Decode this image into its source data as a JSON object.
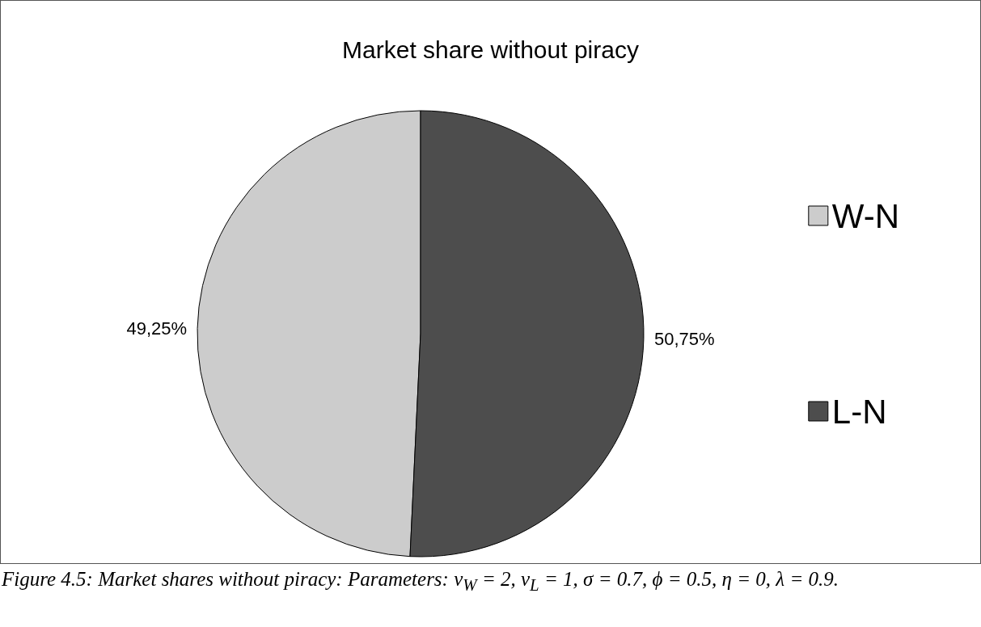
{
  "chart_data": {
    "type": "pie",
    "title": "Market share without piracy",
    "categories": [
      "W-N",
      "L-N"
    ],
    "values": [
      49.25,
      50.75
    ],
    "colors": [
      "#cccccc",
      "#4d4d4d"
    ],
    "value_labels": [
      "49,25%",
      "50,75%"
    ],
    "legend": "right",
    "annotations": [
      "Figure 4.5: Market shares without piracy: Parameters: v$_{W}$ = 2, v$_{L}$ = 1, σ = 0.7, ϕ = 0.5, η = 0, λ = 0.9."
    ]
  }
}
